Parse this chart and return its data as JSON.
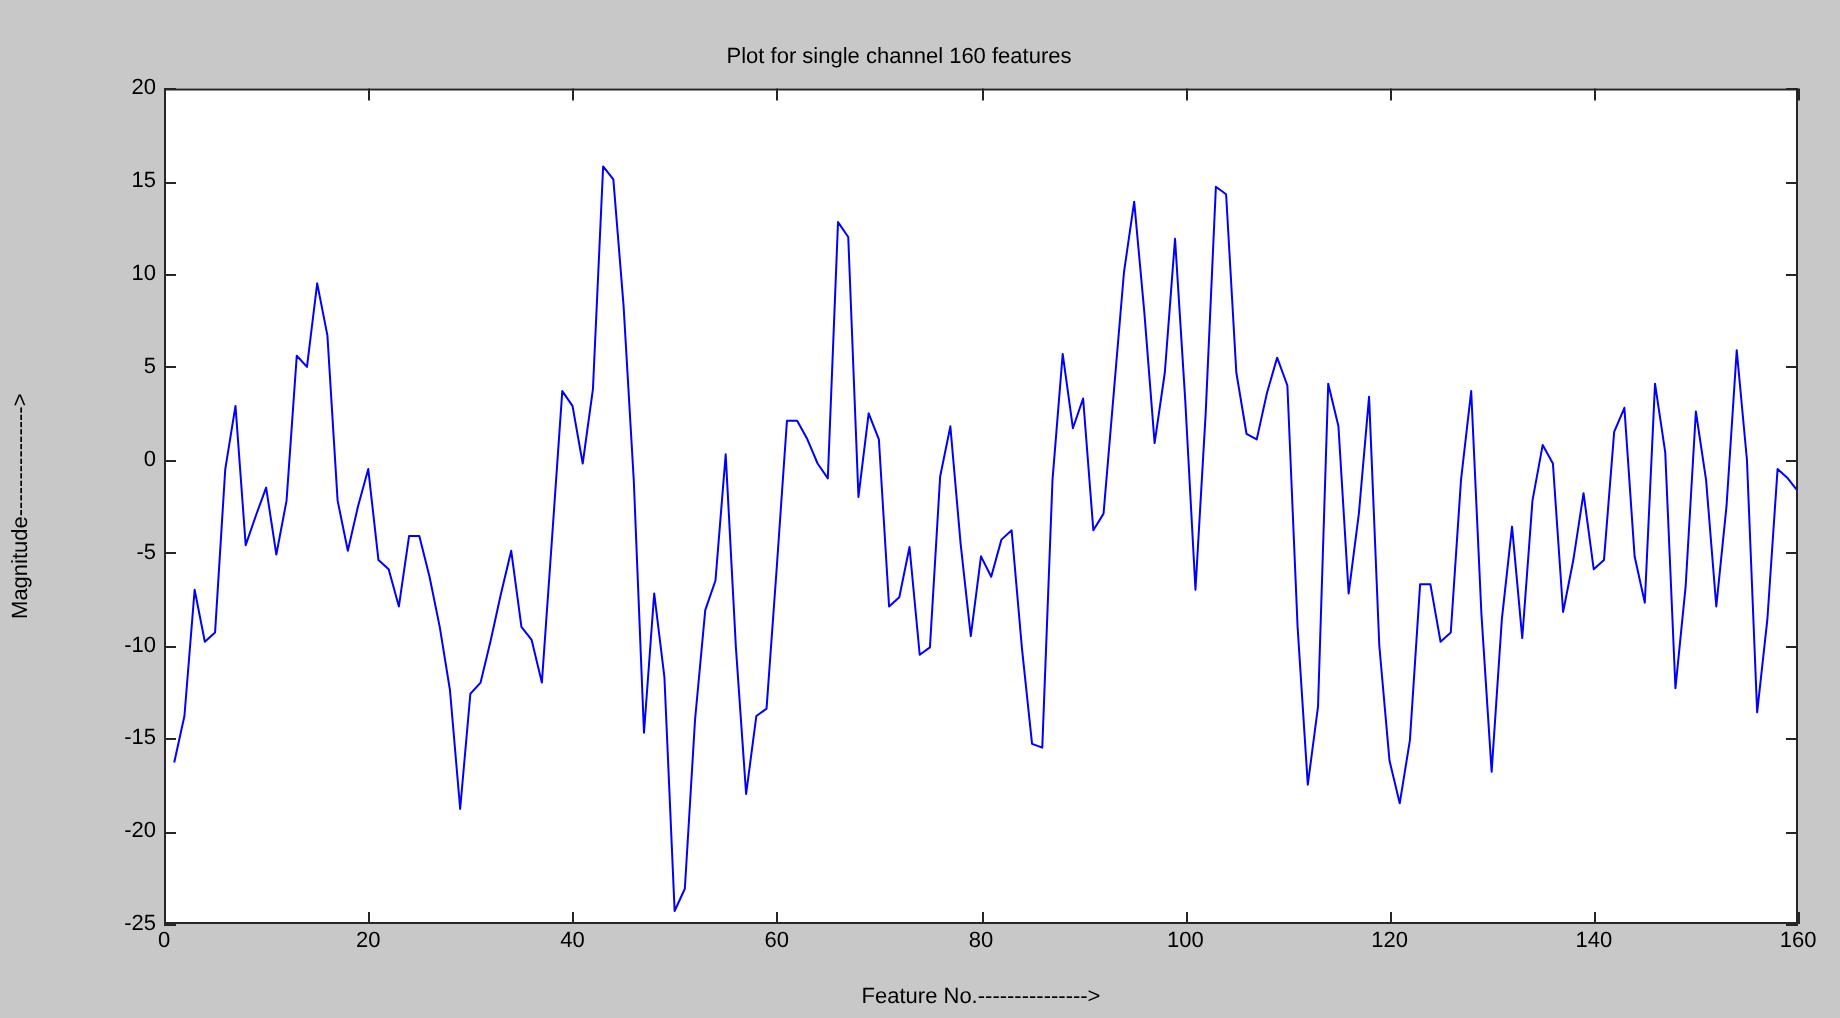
{
  "chart_data": {
    "type": "line",
    "title": "Plot for single channel 160 features",
    "xlabel": "Feature No.--------------->",
    "ylabel": "Magnitude--------------->",
    "x": [
      1,
      2,
      3,
      4,
      5,
      6,
      7,
      8,
      9,
      10,
      11,
      12,
      13,
      14,
      15,
      16,
      17,
      18,
      19,
      20,
      21,
      22,
      23,
      24,
      25,
      26,
      27,
      28,
      29,
      30,
      31,
      32,
      33,
      34,
      35,
      36,
      37,
      38,
      39,
      40,
      41,
      42,
      43,
      44,
      45,
      46,
      47,
      48,
      49,
      50,
      51,
      52,
      53,
      54,
      55,
      56,
      57,
      58,
      59,
      60,
      61,
      62,
      63,
      64,
      65,
      66,
      67,
      68,
      69,
      70,
      71,
      72,
      73,
      74,
      75,
      76,
      77,
      78,
      79,
      80,
      81,
      82,
      83,
      84,
      85,
      86,
      87,
      88,
      89,
      90,
      91,
      92,
      93,
      94,
      95,
      96,
      97,
      98,
      99,
      100,
      101,
      102,
      103,
      104,
      105,
      106,
      107,
      108,
      109,
      110,
      111,
      112,
      113,
      114,
      115,
      116,
      117,
      118,
      119,
      120,
      121,
      122,
      123,
      124,
      125,
      126,
      127,
      128,
      129,
      130,
      131,
      132,
      133,
      134,
      135,
      136,
      137,
      138,
      139,
      140,
      141,
      142,
      143,
      144,
      145,
      146,
      147,
      148,
      149,
      150,
      151,
      152,
      153,
      154,
      155,
      156,
      157,
      158,
      159,
      160
    ],
    "series": [
      {
        "color": "#0000ff",
        "values": [
          -16.3,
          -13.8,
          -7.0,
          -9.8,
          -9.3,
          -0.5,
          2.9,
          -4.6,
          -3.0,
          -1.5,
          -5.1,
          -2.2,
          5.6,
          5.0,
          9.5,
          6.7,
          -2.2,
          -4.9,
          -2.5,
          -0.5,
          -5.4,
          -5.9,
          -7.9,
          -4.1,
          -4.1,
          -6.3,
          -9.0,
          -12.4,
          -18.8,
          -12.6,
          -12.0,
          -9.7,
          -7.2,
          -4.9,
          -9.0,
          -9.7,
          -12.0,
          -4.2,
          3.7,
          2.9,
          -0.2,
          3.8,
          15.8,
          15.1,
          8.3,
          -1.1,
          -14.7,
          -7.2,
          -11.7,
          -24.3,
          -23.1,
          -14.0,
          -8.1,
          -6.5,
          0.3,
          -10.1,
          -18.0,
          -13.8,
          -13.4,
          -5.8,
          2.1,
          2.1,
          1.1,
          -0.2,
          -1.0,
          12.8,
          12.0,
          -2.0,
          2.5,
          1.1,
          -7.9,
          -7.4,
          -4.7,
          -10.5,
          -10.1,
          -0.9,
          1.8,
          -4.5,
          -9.5,
          -5.2,
          -6.3,
          -4.3,
          -3.8,
          -10.1,
          -15.3,
          -15.5,
          -1.1,
          5.7,
          1.7,
          3.3,
          -3.8,
          -2.9,
          3.6,
          10.1,
          13.9,
          7.9,
          0.9,
          4.7,
          11.9,
          3.2,
          -7.0,
          2.5,
          14.7,
          14.3,
          4.7,
          1.4,
          1.1,
          3.6,
          5.5,
          4.0,
          -9.0,
          -17.5,
          -13.3,
          4.1,
          1.8,
          -7.2,
          -2.9,
          3.4,
          -10,
          -16.2,
          -18.5,
          -15.1,
          -6.7,
          -6.7,
          -9.8,
          -9.3,
          -1.1,
          3.7,
          -8.3,
          -16.8,
          -8.6,
          -3.6,
          -9.6,
          -2.2,
          0.8,
          -0.2,
          -8.2,
          -5.4,
          -1.8,
          -5.9,
          -5.4,
          1.5,
          2.8,
          -5.2,
          -7.7,
          4.1,
          0.4,
          -12.3,
          -6.8,
          2.6,
          -1.1,
          -7.9,
          -2.5,
          5.9,
          0,
          -13.6,
          -8.6,
          -0.5,
          -1.0,
          -1.7
        ]
      }
    ],
    "xlim": [
      0,
      160
    ],
    "xticks": [
      0,
      20,
      40,
      60,
      80,
      100,
      120,
      140,
      160
    ],
    "ylim": [
      -25,
      20
    ],
    "yticks": [
      -25,
      -20,
      -15,
      -10,
      -5,
      0,
      5,
      10,
      15,
      20
    ],
    "grid": false,
    "legend": false,
    "marker": "none",
    "line_style": "solid"
  }
}
